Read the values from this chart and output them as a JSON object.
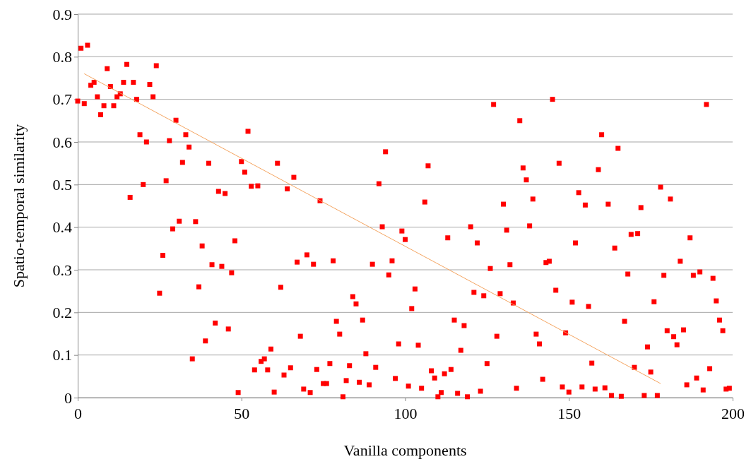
{
  "chart_data": {
    "type": "scatter",
    "xlabel": "Vanilla components",
    "ylabel": "Spatio-temporal similarity",
    "xlim": [
      0,
      200
    ],
    "ylim": [
      0,
      0.9
    ],
    "xticks": [
      0,
      50,
      100,
      150,
      200
    ],
    "yticks": [
      {
        "value": 0,
        "label": "0"
      },
      {
        "value": 0.1,
        "label": "0.1"
      },
      {
        "value": 0.2,
        "label": "0.2"
      },
      {
        "value": 0.3,
        "label": "0.3"
      },
      {
        "value": 0.4,
        "label": "0.4"
      },
      {
        "value": 0.5,
        "label": "0.5"
      },
      {
        "value": 0.6,
        "label": "0.6"
      },
      {
        "value": 0.7,
        "label": "0.7"
      },
      {
        "value": 0.8,
        "label": "0.8"
      },
      {
        "value": 0.9,
        "label": "0.9"
      }
    ],
    "grid": "y",
    "marker": "square",
    "series": [
      {
        "color": "#ff0000",
        "x": [
          0,
          1,
          2,
          3,
          4,
          5,
          6,
          7,
          8,
          9,
          10,
          11,
          12,
          13,
          14,
          15,
          16,
          17,
          18,
          19,
          20,
          21,
          22,
          23,
          24,
          25,
          26,
          27,
          28,
          29,
          30,
          31,
          32,
          33,
          34,
          35,
          36,
          37,
          38,
          39,
          40,
          41,
          42,
          43,
          44,
          45,
          46,
          47,
          48,
          49,
          50,
          51,
          52,
          53,
          54,
          55,
          56,
          57,
          58,
          59,
          60,
          61,
          62,
          63,
          64,
          65,
          66,
          67,
          68,
          69,
          70,
          71,
          72,
          73,
          74,
          75,
          76,
          77,
          78,
          79,
          80,
          81,
          82,
          83,
          84,
          85,
          86,
          87,
          88,
          89,
          90,
          91,
          92,
          93,
          94,
          95,
          96,
          97,
          98,
          99,
          100,
          101,
          102,
          103,
          104,
          105,
          106,
          107,
          108,
          109,
          110,
          111,
          112,
          113,
          114,
          115,
          116,
          117,
          118,
          119,
          120,
          121,
          122,
          123,
          124,
          125,
          126,
          127,
          128,
          129,
          130,
          131,
          132,
          133,
          134,
          135,
          136,
          137,
          138,
          139,
          140,
          141,
          142,
          143,
          144,
          145,
          146,
          147,
          148,
          149,
          150,
          151,
          152,
          153,
          154,
          155,
          156,
          157,
          158,
          159,
          160,
          161,
          162,
          163,
          164,
          165,
          166,
          167,
          168,
          169,
          170,
          171,
          172,
          173,
          174,
          175,
          176,
          177,
          178,
          179,
          180,
          181,
          182,
          183,
          184,
          185,
          186,
          187,
          188,
          189,
          190,
          191,
          192,
          193,
          194,
          195,
          196,
          197,
          198,
          199
        ],
        "values": [
          0.696,
          0.82,
          0.69,
          0.827,
          0.733,
          0.74,
          0.706,
          0.664,
          0.685,
          0.772,
          0.73,
          0.685,
          0.706,
          0.713,
          0.74,
          0.782,
          0.47,
          0.74,
          0.7,
          0.617,
          0.5,
          0.6,
          0.735,
          0.706,
          0.779,
          0.245,
          0.334,
          0.509,
          0.603,
          0.396,
          0.651,
          0.414,
          0.552,
          0.617,
          0.588,
          0.091,
          0.413,
          0.26,
          0.356,
          0.133,
          0.55,
          0.312,
          0.175,
          0.484,
          0.308,
          0.479,
          0.161,
          0.293,
          0.368,
          0.012,
          0.554,
          0.529,
          0.625,
          0.496,
          0.065,
          0.497,
          0.085,
          0.091,
          0.065,
          0.114,
          0.013,
          0.55,
          0.259,
          0.053,
          0.49,
          0.07,
          0.517,
          0.318,
          0.144,
          0.02,
          0.335,
          0.012,
          0.313,
          0.066,
          0.462,
          0.033,
          0.033,
          0.08,
          0.321,
          0.179,
          0.149,
          0.002,
          0.04,
          0.075,
          0.237,
          0.22,
          0.036,
          0.182,
          0.103,
          0.03,
          0.313,
          0.071,
          0.502,
          0.401,
          0.577,
          0.288,
          0.321,
          0.045,
          0.126,
          0.391,
          0.371,
          0.027,
          0.209,
          0.255,
          0.123,
          0.022,
          0.459,
          0.544,
          0.063,
          0.046,
          0.002,
          0.012,
          0.056,
          0.375,
          0.066,
          0.182,
          0.01,
          0.111,
          0.169,
          0.002,
          0.401,
          0.247,
          0.363,
          0.015,
          0.239,
          0.08,
          0.303,
          0.688,
          0.144,
          0.244,
          0.454,
          0.393,
          0.312,
          0.222,
          0.022,
          0.65,
          0.539,
          0.511,
          0.403,
          0.466,
          0.149,
          0.126,
          0.043,
          0.317,
          0.32,
          0.7,
          0.252,
          0.55,
          0.025,
          0.152,
          0.013,
          0.224,
          0.363,
          0.481,
          0.025,
          0.452,
          0.214,
          0.081,
          0.02,
          0.535,
          0.617,
          0.023,
          0.454,
          0.005,
          0.351,
          0.585,
          0.003,
          0.179,
          0.29,
          0.383,
          0.071,
          0.385,
          0.446,
          0.005,
          0.119,
          0.06,
          0.225,
          0.005,
          0.494,
          0.287,
          0.157,
          0.466,
          0.143,
          0.124,
          0.32,
          0.159,
          0.03,
          0.375,
          0.287,
          0.046,
          0.295,
          0.018,
          0.688,
          0.068,
          0.28,
          0.227,
          0.182,
          0.157,
          0.02,
          0.022
        ]
      },
      {
        "type": "line",
        "color": "#f4a460",
        "marker": "none",
        "x": [
          2,
          178
        ],
        "values": [
          0.76,
          0.033
        ]
      }
    ]
  }
}
